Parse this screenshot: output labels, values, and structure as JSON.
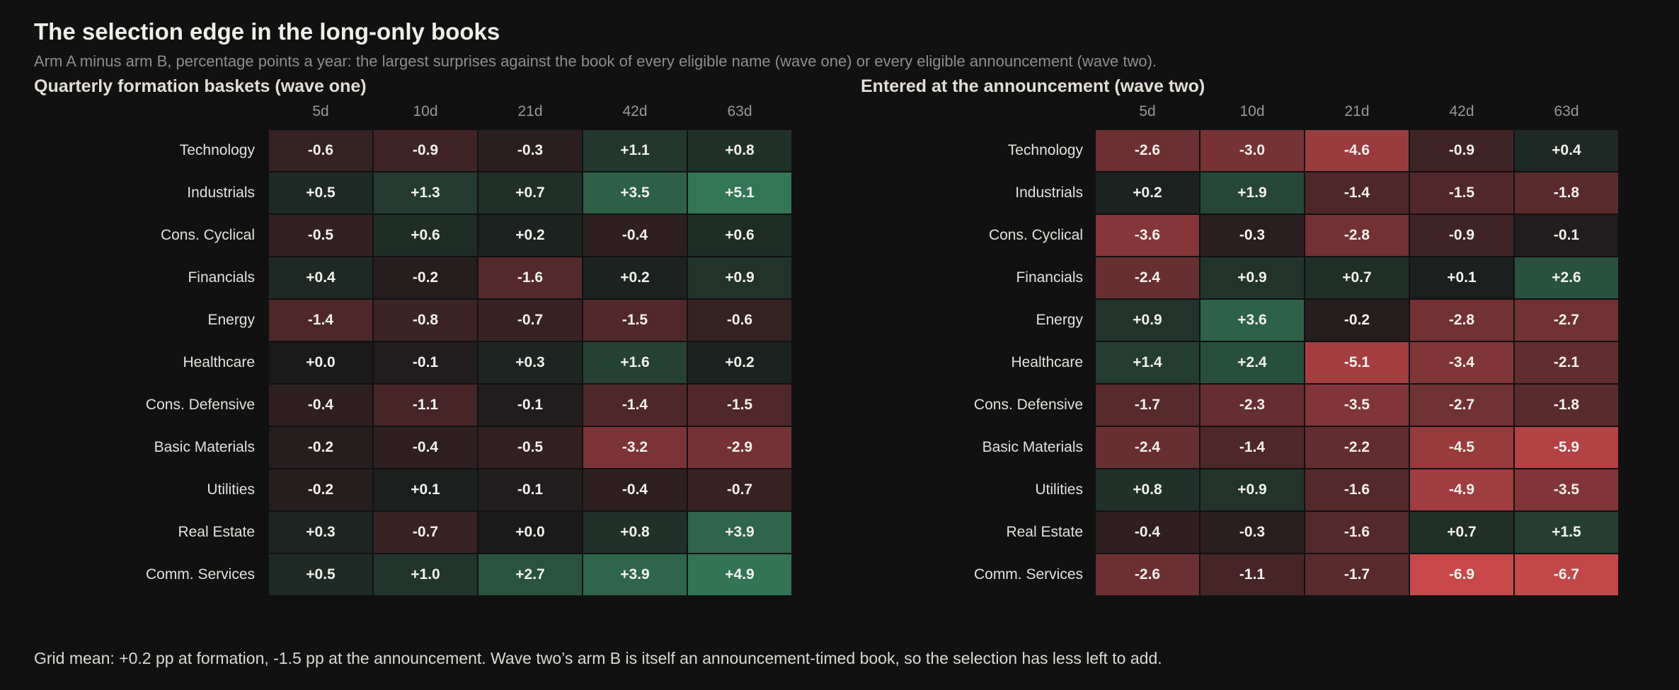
{
  "title": "The selection edge in the long-only books",
  "subtitle": "Arm A minus arm B, percentage points a year: the largest surprises against the book of every eligible name (wave one) or every eligible announcement (wave two).",
  "footnote": "Grid mean: +0.2 pp at formation, -1.5 pp at the announcement. Wave two’s arm B is itself an announcement-timed book, so the selection has less left to add.",
  "colors": {
    "positive": "#3a8f65",
    "negative": "#c9484b",
    "neutral": "#1a1a1b",
    "background": "#111112"
  },
  "chart_data": [
    {
      "type": "heatmap",
      "title": "Quarterly formation baskets (wave one)",
      "x": [
        "5d",
        "10d",
        "21d",
        "42d",
        "63d"
      ],
      "y": [
        "Technology",
        "Industrials",
        "Cons. Cyclical",
        "Financials",
        "Energy",
        "Healthcare",
        "Cons. Defensive",
        "Basic Materials",
        "Utilities",
        "Real Estate",
        "Comm. Services"
      ],
      "values": [
        [
          -0.6,
          -0.9,
          -0.3,
          1.1,
          0.8
        ],
        [
          0.5,
          1.3,
          0.7,
          3.5,
          5.1
        ],
        [
          -0.5,
          0.6,
          0.2,
          -0.4,
          0.6
        ],
        [
          0.4,
          -0.2,
          -1.6,
          0.2,
          0.9
        ],
        [
          -1.4,
          -0.8,
          -0.7,
          -1.5,
          -0.6
        ],
        [
          0.0,
          -0.1,
          0.3,
          1.6,
          0.2
        ],
        [
          -0.4,
          -1.1,
          -0.1,
          -1.4,
          -1.5
        ],
        [
          -0.2,
          -0.4,
          -0.5,
          -3.2,
          -2.9
        ],
        [
          -0.2,
          0.1,
          -0.1,
          -0.4,
          -0.7
        ],
        [
          0.3,
          -0.7,
          0.0,
          0.8,
          3.9
        ],
        [
          0.5,
          1.0,
          2.7,
          3.9,
          4.9
        ]
      ]
    },
    {
      "type": "heatmap",
      "title": "Entered at the announcement (wave two)",
      "x": [
        "5d",
        "10d",
        "21d",
        "42d",
        "63d"
      ],
      "y": [
        "Technology",
        "Industrials",
        "Cons. Cyclical",
        "Financials",
        "Energy",
        "Healthcare",
        "Cons. Defensive",
        "Basic Materials",
        "Utilities",
        "Real Estate",
        "Comm. Services"
      ],
      "values": [
        [
          -2.6,
          -3.0,
          -4.6,
          -0.9,
          0.4
        ],
        [
          0.2,
          1.9,
          -1.4,
          -1.5,
          -1.8
        ],
        [
          -3.6,
          -0.3,
          -2.8,
          -0.9,
          -0.1
        ],
        [
          -2.4,
          0.9,
          0.7,
          0.1,
          2.6
        ],
        [
          0.9,
          3.6,
          -0.2,
          -2.8,
          -2.7
        ],
        [
          1.4,
          2.4,
          -5.1,
          -3.4,
          -2.1
        ],
        [
          -1.7,
          -2.3,
          -3.5,
          -2.7,
          -1.8
        ],
        [
          -2.4,
          -1.4,
          -2.2,
          -4.5,
          -5.9
        ],
        [
          0.8,
          0.9,
          -1.6,
          -4.9,
          -3.5
        ],
        [
          -0.4,
          -0.3,
          -1.6,
          0.7,
          1.5
        ],
        [
          -2.6,
          -1.1,
          -1.7,
          -6.9,
          -6.7
        ]
      ]
    }
  ]
}
